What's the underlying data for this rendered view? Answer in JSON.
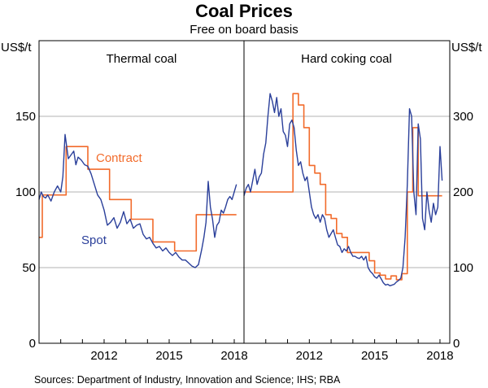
{
  "title": "Coal Prices",
  "subtitle": "Free on board basis",
  "source": "Sources: Department of Industry, Innovation and Science; IHS; RBA",
  "colors": {
    "contract": "#f26b2b",
    "spot": "#2a3f9a",
    "grid": "#b3b3b3",
    "frame": "#000000"
  },
  "chart_data": [
    {
      "type": "line",
      "title": "Thermal coal",
      "ylabel": "US$/t",
      "ylim": [
        0,
        200
      ],
      "yticks": [
        0,
        50,
        100,
        150
      ],
      "xlim": [
        2009.0,
        2018.45
      ],
      "xticks": [
        2012,
        2015,
        2018
      ],
      "annotations": [
        {
          "text": "Contract",
          "series": "Contract"
        },
        {
          "text": "Spot",
          "series": "Spot"
        }
      ],
      "series": [
        {
          "name": "Contract",
          "step": true,
          "x": [
            2009.0,
            2009.15,
            2009.15,
            2010.25,
            2010.25,
            2011.25,
            2011.25,
            2012.25,
            2012.25,
            2013.25,
            2013.25,
            2014.25,
            2014.25,
            2015.25,
            2015.25,
            2016.25,
            2016.25,
            2017.25,
            2017.25,
            2018.1
          ],
          "y": [
            70,
            70,
            98,
            98,
            130,
            130,
            115,
            115,
            95,
            95,
            82,
            82,
            67,
            67,
            61,
            61,
            85,
            85,
            85,
            85
          ]
        },
        {
          "name": "Spot",
          "x": [
            2009.0,
            2009.1,
            2009.2,
            2009.3,
            2009.4,
            2009.55,
            2009.7,
            2009.85,
            2010.0,
            2010.1,
            2010.2,
            2010.35,
            2010.5,
            2010.6,
            2010.7,
            2010.8,
            2010.95,
            2011.1,
            2011.25,
            2011.4,
            2011.55,
            2011.7,
            2011.85,
            2012.0,
            2012.15,
            2012.3,
            2012.45,
            2012.6,
            2012.75,
            2012.9,
            2013.05,
            2013.2,
            2013.35,
            2013.5,
            2013.65,
            2013.8,
            2013.95,
            2014.1,
            2014.25,
            2014.4,
            2014.55,
            2014.7,
            2014.85,
            2015.0,
            2015.15,
            2015.3,
            2015.45,
            2015.6,
            2015.75,
            2015.9,
            2016.05,
            2016.2,
            2016.35,
            2016.5,
            2016.6,
            2016.7,
            2016.8,
            2016.9,
            2017.0,
            2017.1,
            2017.2,
            2017.3,
            2017.4,
            2017.5,
            2017.6,
            2017.7,
            2017.8,
            2017.9,
            2018.0,
            2018.1
          ],
          "y": [
            95,
            100,
            97,
            96,
            98,
            94,
            100,
            104,
            100,
            110,
            138,
            122,
            125,
            127,
            118,
            123,
            121,
            118,
            117,
            112,
            105,
            98,
            95,
            88,
            78,
            80,
            83,
            76,
            80,
            87,
            79,
            82,
            76,
            78,
            79,
            72,
            69,
            70,
            66,
            63,
            64,
            61,
            63,
            60,
            58,
            60,
            57,
            55,
            55,
            53,
            51,
            50,
            52,
            62,
            70,
            80,
            107,
            90,
            82,
            70,
            78,
            80,
            88,
            86,
            90,
            95,
            97,
            95,
            100,
            105
          ]
        }
      ]
    },
    {
      "type": "line",
      "title": "Hard coking coal",
      "ylabel": "US$/t",
      "ylim": [
        0,
        400
      ],
      "yticks": [
        0,
        100,
        200,
        300
      ],
      "xlim": [
        2009.0,
        2018.45
      ],
      "xticks": [
        2012,
        2015,
        2018
      ],
      "series": [
        {
          "name": "Contract",
          "step": true,
          "x": [
            2009.0,
            2009.25,
            2009.25,
            2010.0,
            2010.0,
            2010.25,
            2010.25,
            2011.0,
            2011.0,
            2011.25,
            2011.25,
            2011.5,
            2011.5,
            2011.75,
            2011.75,
            2012.0,
            2012.0,
            2012.25,
            2012.25,
            2012.5,
            2012.5,
            2012.75,
            2012.75,
            2013.0,
            2013.0,
            2013.25,
            2013.25,
            2013.5,
            2013.5,
            2013.75,
            2013.75,
            2014.0,
            2014.0,
            2014.25,
            2014.25,
            2014.5,
            2014.5,
            2014.75,
            2014.75,
            2015.0,
            2015.0,
            2015.25,
            2015.25,
            2015.5,
            2015.5,
            2015.75,
            2015.75,
            2016.0,
            2016.0,
            2016.25,
            2016.25,
            2016.5,
            2016.5,
            2016.75,
            2016.75,
            2017.0,
            2017.0,
            2017.25,
            2017.25,
            2017.5,
            2017.5,
            2017.75,
            2017.75,
            2018.1
          ],
          "y": [
            200,
            200,
            200,
            200,
            200,
            200,
            200,
            200,
            200,
            200,
            330,
            330,
            315,
            315,
            285,
            285,
            235,
            235,
            225,
            225,
            210,
            210,
            170,
            170,
            165,
            165,
            145,
            145,
            140,
            140,
            120,
            120,
            120,
            120,
            120,
            120,
            120,
            120,
            109,
            109,
            93,
            93,
            90,
            90,
            85,
            85,
            89,
            89,
            84,
            84,
            92,
            92,
            200,
            200,
            285,
            285,
            195,
            195,
            195,
            195,
            195,
            195,
            195,
            195
          ]
        },
        {
          "name": "Spot",
          "x": [
            2009.0,
            2009.1,
            2009.2,
            2009.3,
            2009.4,
            2009.5,
            2009.6,
            2009.7,
            2009.8,
            2009.9,
            2010.0,
            2010.1,
            2010.2,
            2010.3,
            2010.4,
            2010.5,
            2010.6,
            2010.7,
            2010.8,
            2010.9,
            2011.0,
            2011.1,
            2011.2,
            2011.3,
            2011.4,
            2011.5,
            2011.6,
            2011.7,
            2011.8,
            2011.9,
            2012.0,
            2012.1,
            2012.2,
            2012.3,
            2012.4,
            2012.5,
            2012.6,
            2012.7,
            2012.8,
            2012.9,
            2013.0,
            2013.1,
            2013.2,
            2013.3,
            2013.4,
            2013.5,
            2013.6,
            2013.7,
            2013.8,
            2013.9,
            2014.0,
            2014.1,
            2014.2,
            2014.3,
            2014.4,
            2014.5,
            2014.6,
            2014.7,
            2014.8,
            2014.9,
            2015.0,
            2015.1,
            2015.2,
            2015.3,
            2015.4,
            2015.5,
            2015.6,
            2015.7,
            2015.8,
            2015.9,
            2016.0,
            2016.1,
            2016.2,
            2016.3,
            2016.4,
            2016.5,
            2016.6,
            2016.7,
            2016.8,
            2016.9,
            2017.0,
            2017.1,
            2017.2,
            2017.3,
            2017.4,
            2017.5,
            2017.6,
            2017.7,
            2017.8,
            2017.9,
            2018.0,
            2018.1
          ],
          "y": [
            195,
            205,
            210,
            200,
            215,
            230,
            210,
            220,
            225,
            250,
            265,
            300,
            330,
            320,
            305,
            325,
            300,
            310,
            280,
            275,
            260,
            290,
            295,
            285,
            255,
            235,
            240,
            225,
            215,
            220,
            200,
            180,
            170,
            165,
            170,
            160,
            170,
            165,
            150,
            140,
            145,
            150,
            140,
            130,
            128,
            120,
            125,
            122,
            128,
            120,
            115,
            115,
            113,
            112,
            115,
            110,
            115,
            100,
            95,
            92,
            88,
            86,
            90,
            85,
            80,
            77,
            78,
            76,
            77,
            78,
            81,
            83,
            86,
            100,
            140,
            210,
            310,
            300,
            200,
            170,
            290,
            270,
            165,
            150,
            200,
            175,
            160,
            185,
            170,
            180,
            260,
            215
          ]
        }
      ]
    }
  ]
}
